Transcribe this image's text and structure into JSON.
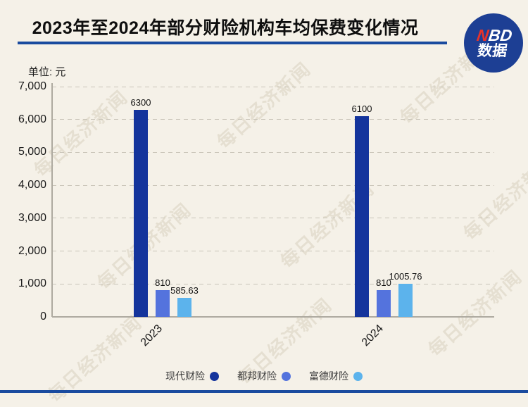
{
  "header": {
    "title": "2023年至2024年部分财险机构车均保费变化情况",
    "logo": {
      "text_red": "N",
      "text_rest": "BD",
      "line2": "数据",
      "bg_color": "#1d3f94",
      "red_color": "#e8332a"
    }
  },
  "unit_label": "单位: 元",
  "watermark_text": "每日经济新闻",
  "colors": {
    "background": "#f5f1e8",
    "accent_rule_blue": "#1a4b9f",
    "gridline": "#c9c4b8",
    "axis": "#aeaaa0",
    "text": "#1a1a1a"
  },
  "chart_data": {
    "type": "bar",
    "title": "2023年至2024年部分财险机构车均保费变化情况",
    "unit": "元",
    "categories": [
      "2023",
      "2024"
    ],
    "series": [
      {
        "name": "现代财险",
        "color": "#14349c",
        "values": [
          6300,
          6100
        ],
        "labels": [
          "6300",
          "6100"
        ]
      },
      {
        "name": "都邦财险",
        "color": "#5473dd",
        "values": [
          810,
          810
        ],
        "labels": [
          "810",
          "810"
        ]
      },
      {
        "name": "富德财险",
        "color": "#5cb3ec",
        "values": [
          585.63,
          1005.76
        ],
        "labels": [
          "585.63",
          "1005.76"
        ]
      }
    ],
    "ylim": [
      0,
      7000
    ],
    "ytick_step": 1000,
    "ytick_labels": [
      "0",
      "1,000",
      "2,000",
      "3,000",
      "4,000",
      "5,000",
      "6,000",
      "7,000"
    ],
    "grid": "horizontal-dashed",
    "legend_position": "bottom",
    "xtick_rotation_deg": -45
  }
}
